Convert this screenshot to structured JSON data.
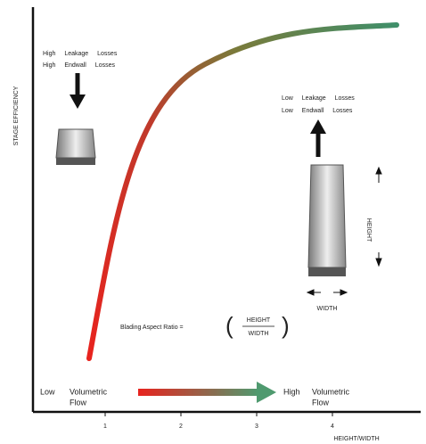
{
  "axes": {
    "y_label": "STAGE EFFICIENCY",
    "x_label": "HEIGHT/WIDTH",
    "ticks": [
      "1",
      "2",
      "3",
      "4"
    ]
  },
  "high_losses": [
    "High Leakage Losses",
    "High Endwall Losses"
  ],
  "low_losses": [
    "Low Leakage Losses",
    "Low Endwall Losses"
  ],
  "dimensions": {
    "height": "HEIGHT",
    "width": "WIDTH"
  },
  "aspect_ratio": {
    "label": "Blading Aspect Ratio =",
    "numerator": "HEIGHT",
    "denominator": "WIDTH"
  },
  "flow": {
    "low": [
      "Low",
      "Volumetric",
      "Flow"
    ],
    "high": [
      "High",
      "Volumetric",
      "Flow"
    ]
  }
}
